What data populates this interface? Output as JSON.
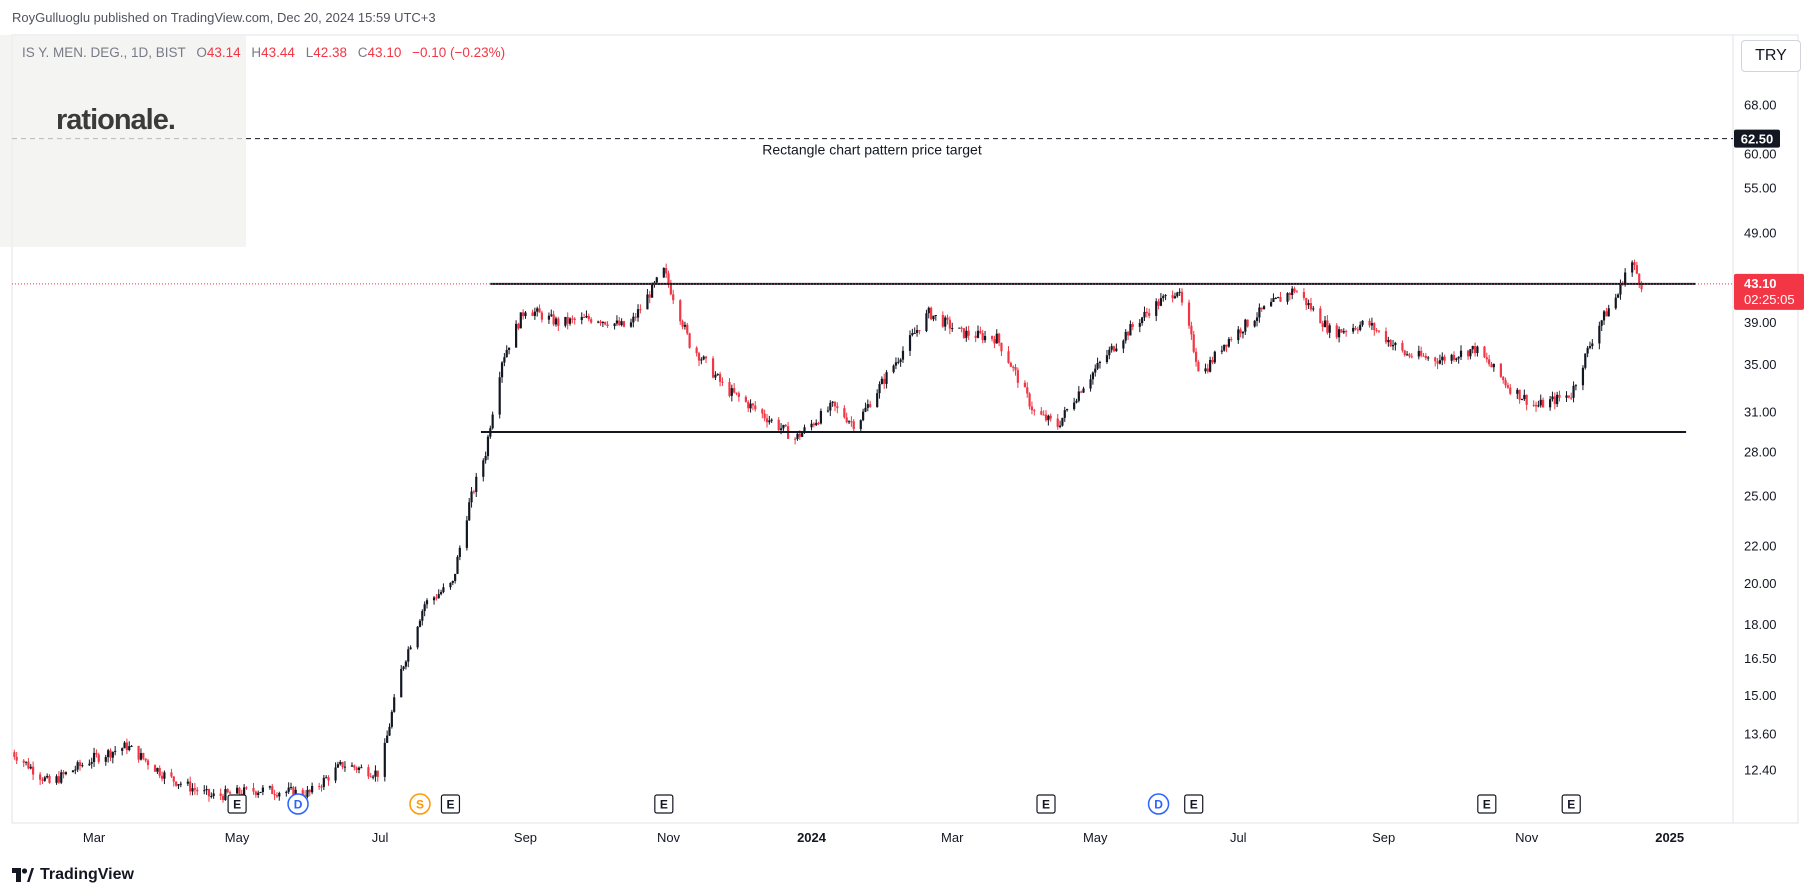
{
  "header": {
    "publish_line": "RoyGulluoglu published on TradingView.com, Dec 20, 2024 15:59 UTC+3"
  },
  "symbol": {
    "name": "IS Y. MEN. DEG., 1D, BIST",
    "o_label": "O",
    "open": "43.14",
    "h_label": "H",
    "high": "43.44",
    "l_label": "L",
    "low": "42.38",
    "c_label": "C",
    "close": "43.10",
    "change": "−0.10 (−0.23%)"
  },
  "logo": {
    "text": "rationale."
  },
  "currency": {
    "label": "TRY"
  },
  "current_price": {
    "value": "43.10",
    "countdown": "02:25:05"
  },
  "target_label": {
    "value": "62.50"
  },
  "annotations": {
    "target_text": "Rectangle chart pattern price target"
  },
  "footer": {
    "brand": "TradingView",
    "logo_icon": "tradingview-logo-icon"
  },
  "colors": {
    "up": "#131722",
    "down": "#f23645",
    "accent_red": "#f23645",
    "dividend_blue": "#2962ff",
    "split_orange": "#ff9800",
    "grid_border": "#e0e3eb"
  },
  "chart_data": {
    "type": "candlestick",
    "title": "",
    "xlabel": "",
    "ylabel": "",
    "y_scale": "log",
    "ylim": [
      11.5,
      73.0
    ],
    "y_ticks": [
      "68.00",
      "60.00",
      "55.00",
      "49.00",
      "43.10",
      "39.00",
      "35.00",
      "31.00",
      "28.00",
      "25.00",
      "22.00",
      "20.00",
      "18.00",
      "16.50",
      "15.00",
      "13.60",
      "12.40"
    ],
    "x_ticks": [
      {
        "date": "2023-03-01",
        "label": "Mar"
      },
      {
        "date": "2023-05-01",
        "label": "May"
      },
      {
        "date": "2023-07-01",
        "label": "Jul"
      },
      {
        "date": "2023-09-01",
        "label": "Sep"
      },
      {
        "date": "2023-11-01",
        "label": "Nov"
      },
      {
        "date": "2024-01-01",
        "label": "2024"
      },
      {
        "date": "2024-03-01",
        "label": "Mar"
      },
      {
        "date": "2024-05-01",
        "label": "May"
      },
      {
        "date": "2024-07-01",
        "label": "Jul"
      },
      {
        "date": "2024-09-01",
        "label": "Sep"
      },
      {
        "date": "2024-11-01",
        "label": "Nov"
      },
      {
        "date": "2025-01-01",
        "label": "2025"
      }
    ],
    "x_range": [
      "2023-01-25",
      "2025-01-28"
    ],
    "price_path": [
      [
        "2023-01-25",
        13.0
      ],
      [
        "2023-02-10",
        12.0
      ],
      [
        "2023-03-01",
        12.8
      ],
      [
        "2023-03-15",
        13.2
      ],
      [
        "2023-04-01",
        12.2
      ],
      [
        "2023-04-20",
        11.6
      ],
      [
        "2023-05-10",
        11.8
      ],
      [
        "2023-06-01",
        11.7
      ],
      [
        "2023-06-15",
        12.6
      ],
      [
        "2023-07-01",
        12.3
      ],
      [
        "2023-07-10",
        16.0
      ],
      [
        "2023-07-20",
        19.0
      ],
      [
        "2023-08-01",
        20.0
      ],
      [
        "2023-08-08",
        24.5
      ],
      [
        "2023-08-15",
        28.0
      ],
      [
        "2023-08-22",
        35.5
      ],
      [
        "2023-09-01",
        40.5
      ],
      [
        "2023-09-15",
        39.0
      ],
      [
        "2023-10-01",
        39.5
      ],
      [
        "2023-10-15",
        38.5
      ],
      [
        "2023-10-30",
        44.5
      ],
      [
        "2023-11-10",
        37.0
      ],
      [
        "2023-11-25",
        33.0
      ],
      [
        "2023-12-10",
        31.0
      ],
      [
        "2023-12-25",
        29.0
      ],
      [
        "2024-01-10",
        31.5
      ],
      [
        "2024-01-20",
        30.0
      ],
      [
        "2024-02-05",
        35.0
      ],
      [
        "2024-02-20",
        40.0
      ],
      [
        "2024-03-05",
        38.0
      ],
      [
        "2024-03-20",
        37.5
      ],
      [
        "2024-04-05",
        31.0
      ],
      [
        "2024-04-15",
        30.0
      ],
      [
        "2024-04-25",
        33.0
      ],
      [
        "2024-05-10",
        37.0
      ],
      [
        "2024-05-25",
        40.5
      ],
      [
        "2024-06-05",
        42.5
      ],
      [
        "2024-06-15",
        34.0
      ],
      [
        "2024-06-25",
        37.0
      ],
      [
        "2024-07-10",
        40.0
      ],
      [
        "2024-07-25",
        42.5
      ],
      [
        "2024-08-10",
        38.0
      ],
      [
        "2024-08-25",
        39.0
      ],
      [
        "2024-09-10",
        36.0
      ],
      [
        "2024-09-25",
        35.5
      ],
      [
        "2024-10-10",
        36.5
      ],
      [
        "2024-10-25",
        33.0
      ],
      [
        "2024-11-05",
        31.5
      ],
      [
        "2024-11-20",
        32.5
      ],
      [
        "2024-12-01",
        38.5
      ],
      [
        "2024-12-10",
        42.0
      ],
      [
        "2024-12-15",
        46.0
      ],
      [
        "2024-12-20",
        43.1
      ]
    ],
    "horizontal_lines": [
      {
        "value": 43.1,
        "style": "solid",
        "from": "2023-08-17",
        "to": "2025-01-12"
      },
      {
        "value": 29.5,
        "style": "solid",
        "from": "2023-08-13",
        "to": "2025-01-08"
      },
      {
        "value": 62.5,
        "style": "dashed",
        "from": "2023-01-25",
        "to": "2025-01-28"
      }
    ],
    "event_markers": [
      {
        "date": "2023-05-01",
        "kind": "E"
      },
      {
        "date": "2023-05-27",
        "kind": "D"
      },
      {
        "date": "2023-07-18",
        "kind": "S"
      },
      {
        "date": "2023-07-31",
        "kind": "E"
      },
      {
        "date": "2023-10-30",
        "kind": "E"
      },
      {
        "date": "2024-04-10",
        "kind": "E"
      },
      {
        "date": "2024-05-28",
        "kind": "D"
      },
      {
        "date": "2024-06-12",
        "kind": "E"
      },
      {
        "date": "2024-10-15",
        "kind": "E"
      },
      {
        "date": "2024-11-20",
        "kind": "E"
      }
    ]
  }
}
